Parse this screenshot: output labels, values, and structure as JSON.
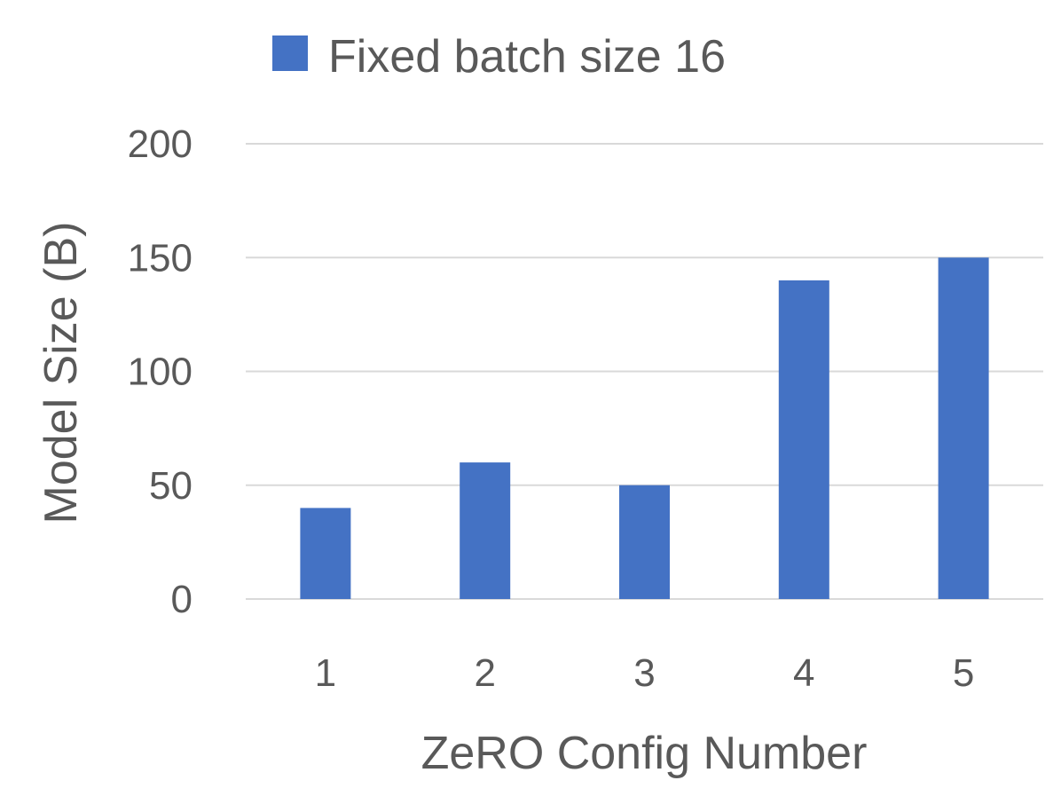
{
  "chart_data": {
    "type": "bar",
    "categories": [
      "1",
      "2",
      "3",
      "4",
      "5"
    ],
    "series": [
      {
        "name": "Fixed batch size 16",
        "values": [
          40,
          60,
          50,
          140,
          150
        ],
        "color": "#4472c4"
      }
    ],
    "title": "",
    "xlabel": "ZeRO Config Number",
    "ylabel": "Model Size (B)",
    "ylim": [
      0,
      200
    ],
    "yticks": [
      "0",
      "50",
      "100",
      "150",
      "200"
    ],
    "grid": true,
    "legend_position": "top"
  }
}
